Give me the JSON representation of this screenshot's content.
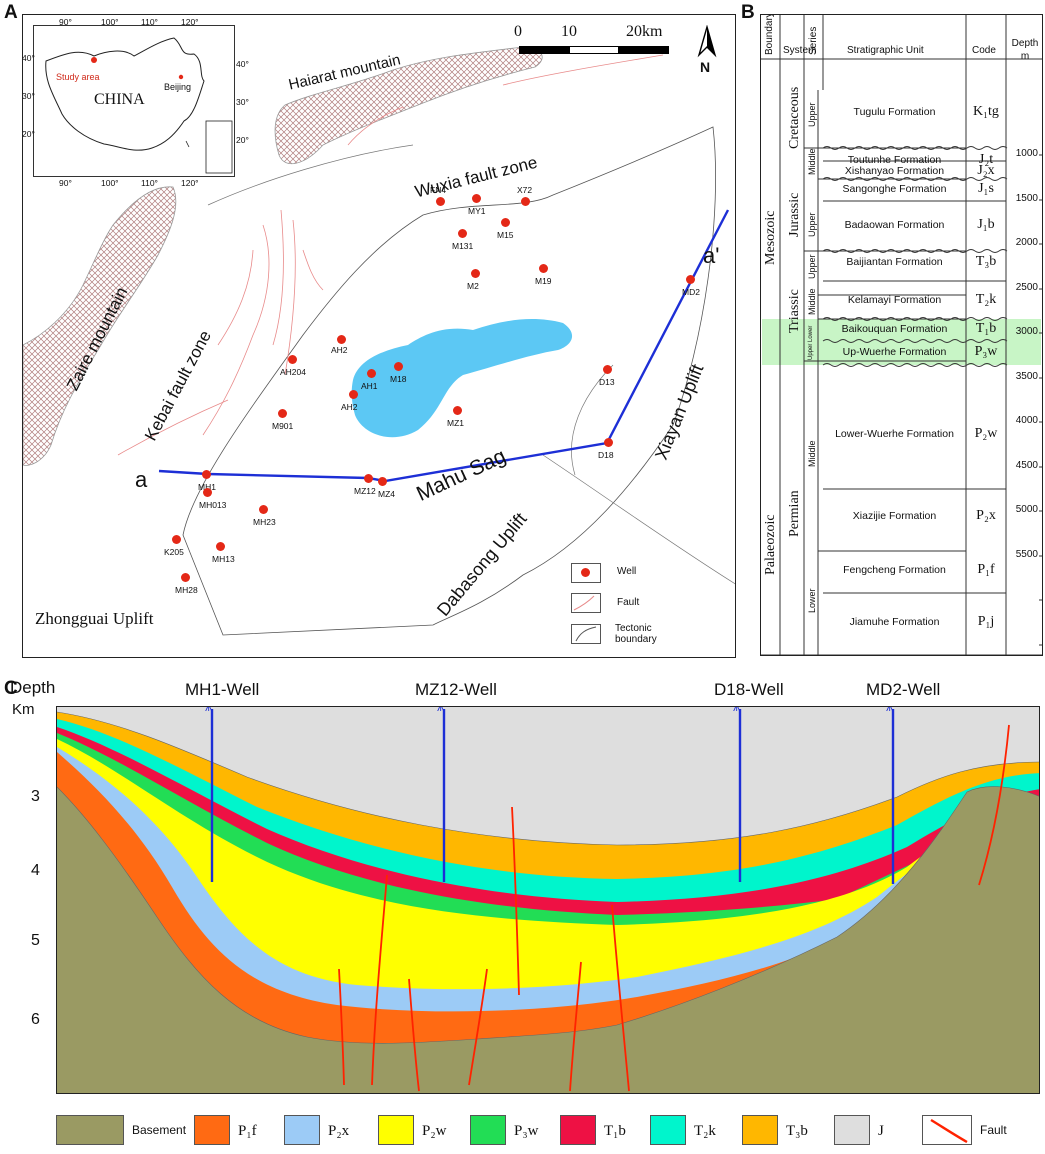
{
  "panels": {
    "a": "A",
    "b": "B",
    "c": "C"
  },
  "map": {
    "inset": {
      "country": "CHINA",
      "study_area": "Study area",
      "beijing": "Beijing",
      "lon_top": [
        "90°",
        "100°",
        "110°",
        "120°"
      ],
      "lon_bottom": [
        "90°",
        "100°",
        "110°",
        "120°"
      ],
      "lat_left": [
        "40°",
        "30°",
        "20°"
      ],
      "lat_right": [
        "40°",
        "30°",
        "20°"
      ]
    },
    "scale": {
      "t0": "0",
      "t1": "10",
      "t2": "20km"
    },
    "north": "N",
    "regions": {
      "haiarat": "Haiarat mountain",
      "wuxia": "Wuxia fault zone",
      "zaire": "Zaire mountain",
      "kebai": "Kebai fault zone",
      "mahu": "Mahu Sag",
      "xiayan": "Xiayan Uplift",
      "dabasong": "Dabasong Uplift",
      "zhongguai": "Zhongguai Uplift"
    },
    "section_ends": {
      "start": "a",
      "end": "a'"
    },
    "wells": [
      "FN4",
      "MY1",
      "X72",
      "M131",
      "M15",
      "M2",
      "M19",
      "MD2",
      "AH2",
      "AH204",
      "AH2",
      "AH1",
      "M18",
      "D13",
      "MZ1",
      "M901",
      "D18",
      "MH1",
      "MZ12",
      "MZ4",
      "MH013",
      "MH23",
      "K205",
      "MH13",
      "MH28"
    ],
    "legend": {
      "well": "Well",
      "fault": "Fault",
      "tectonic": "Tectonic boundary"
    }
  },
  "column": {
    "headers": {
      "boundary": "Boundary",
      "system": "System",
      "series": "Series",
      "unit": "Stratigraphic Unit",
      "code": "Code",
      "depth": "Depth m"
    },
    "boundaries": {
      "mesozoic": "Mesozoic",
      "palaeozoic": "Palaeozoic"
    },
    "systems": {
      "cretaceous": "Cretaceous",
      "jurassic": "Jurassic",
      "triassic": "Triassic",
      "permian": "Permian"
    },
    "series": {
      "s1": "Upper",
      "s2": "Middle",
      "s3": "Upper",
      "s4": "Upper",
      "s5": "Middle",
      "s6": "Lower",
      "s7": "Upper",
      "s8": "Middle",
      "s9": "Lower"
    },
    "units": [
      {
        "name": "Tugulu Formation",
        "code": "K₁tg"
      },
      {
        "name": "Toutunhe Formation",
        "code": "J₂t"
      },
      {
        "name": "Xishanyao Formation",
        "code": "J₂x"
      },
      {
        "name": "Sangonghe Formation",
        "code": "J₁s"
      },
      {
        "name": "Badaowan Formation",
        "code": "J₁b"
      },
      {
        "name": "Baijiantan Formation",
        "code": "T₃b"
      },
      {
        "name": "Kelamayi Formation",
        "code": "T₂k"
      },
      {
        "name": "Baikouquan Formation",
        "code": "T₁b"
      },
      {
        "name": "Up-Wuerhe Formation",
        "code": "P₃w"
      },
      {
        "name": "Lower-Wuerhe Formation",
        "code": "P₂w"
      },
      {
        "name": "Xiazijie Formation",
        "code": "P₂x"
      },
      {
        "name": "Fengcheng Formation",
        "code": "P₁f"
      },
      {
        "name": "Jiamuhe Formation",
        "code": "P₁j"
      }
    ],
    "depths": [
      "1000",
      "1500",
      "2000",
      "2500",
      "3000",
      "3500",
      "4000",
      "4500",
      "5000",
      "5500"
    ],
    "highlight_color": "#c8f5c6"
  },
  "section": {
    "axis_title_1": "Depth",
    "axis_title_2": "Km",
    "ticks": [
      "3",
      "4",
      "5",
      "6"
    ],
    "wells": [
      "MH1-Well",
      "MZ12-Well",
      "D18-Well",
      "MD2-Well"
    ],
    "legend": [
      {
        "label": "Basement",
        "color": "#9a9a63"
      },
      {
        "label": "P₁f",
        "color": "#ff6a13"
      },
      {
        "label": "P₂x",
        "color": "#9ccbf6"
      },
      {
        "label": "P₂w",
        "color": "#ffff00"
      },
      {
        "label": "P₃w",
        "color": "#22dd55"
      },
      {
        "label": "T₁b",
        "color": "#ee1144"
      },
      {
        "label": "T₂k",
        "color": "#00f5cc"
      },
      {
        "label": "T₃b",
        "color": "#ffb700"
      },
      {
        "label": "J",
        "color": "#dedede"
      },
      {
        "label": "Fault",
        "color": "#ff2200"
      }
    ]
  }
}
